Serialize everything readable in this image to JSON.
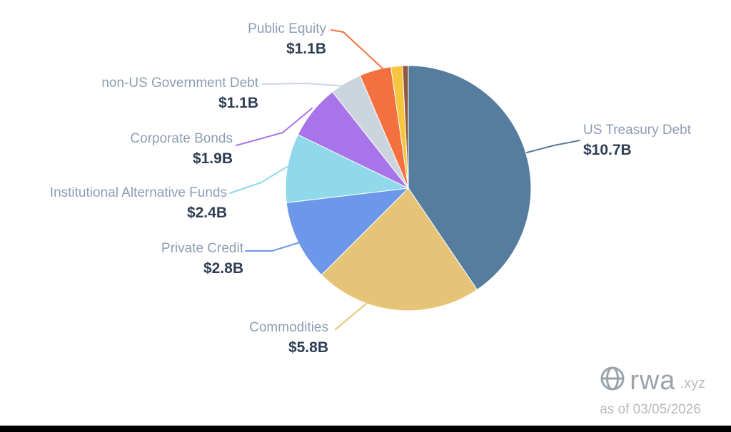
{
  "chart_data": {
    "type": "pie",
    "title": "",
    "start_angle_deg": 0,
    "direction": "clockwise",
    "legend_position": "callout-labels",
    "series": [
      {
        "label": "US Treasury Debt",
        "value_label": "$10.7B",
        "value": 10.7,
        "color": "#567d9e"
      },
      {
        "label": "Commodities",
        "value_label": "$5.8B",
        "value": 5.8,
        "color": "#e5c477"
      },
      {
        "label": "Private Credit",
        "value_label": "$2.8B",
        "value": 2.8,
        "color": "#6d97e8"
      },
      {
        "label": "Institutional Alternative Funds",
        "value_label": "$2.4B",
        "value": 2.4,
        "color": "#8fd9ea"
      },
      {
        "label": "Corporate Bonds",
        "value_label": "$1.9B",
        "value": 1.9,
        "color": "#a874e9"
      },
      {
        "label": "non-US Government Debt",
        "value_label": "$1.1B",
        "value": 1.1,
        "color": "#ccd4de"
      },
      {
        "label": "Public Equity",
        "value_label": "$1.1B",
        "value": 1.1,
        "color": "#f4713f"
      },
      {
        "label": "",
        "value_label": "",
        "value": 0.4,
        "color": "#f5c63e"
      },
      {
        "label": "",
        "value_label": "",
        "value": 0.2,
        "color": "#8d5a44"
      }
    ]
  },
  "watermark": {
    "brand": "rwa",
    "tld": ".xyz",
    "as_of": "as of 03/05/2026"
  }
}
